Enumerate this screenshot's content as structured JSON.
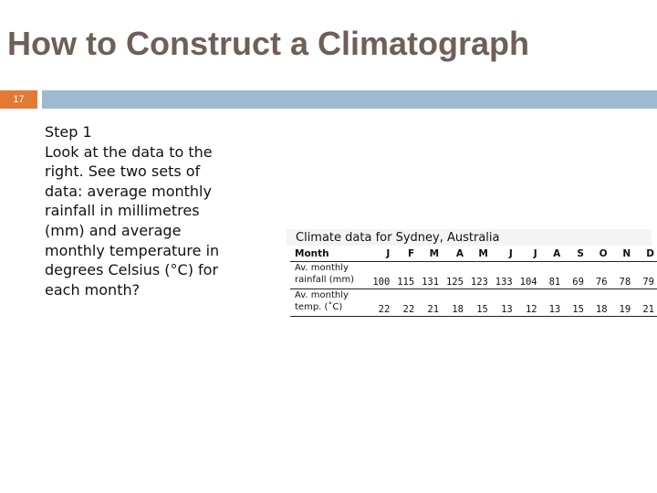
{
  "slide": {
    "title": "How to Construct a Climatograph",
    "number": "17"
  },
  "body": {
    "step_label": "Step 1",
    "lines": [
      "Look at the data to the",
      "right.  See two sets of",
      "data: average monthly",
      "rainfall in millimetres",
      "(mm) and average",
      "monthly temperature in",
      "degrees Celsius (°C) for",
      "each month?"
    ]
  },
  "table": {
    "caption": "Climate data for Sydney, Australia",
    "header_label": "Month",
    "months": [
      "J",
      "F",
      "M",
      "A",
      "M",
      "J",
      "J",
      "A",
      "S",
      "O",
      "N",
      "D"
    ],
    "rainfall_label_line1": "Av. monthly",
    "rainfall_label_line2": "rainfall (mm)",
    "rainfall": [
      "100",
      "115",
      "131",
      "125",
      "123",
      "133",
      "104",
      "81",
      "69",
      "76",
      "78",
      "79"
    ],
    "temp_label_line1": "Av. monthly",
    "temp_label_line2": "temp. (˚C)",
    "temperature": [
      "22",
      "22",
      "21",
      "18",
      "15",
      "13",
      "12",
      "13",
      "15",
      "18",
      "19",
      "21"
    ]
  },
  "colors": {
    "title": "#6f5f57",
    "number_box": "#e07a34",
    "title_bar": "#9fb9cf"
  }
}
